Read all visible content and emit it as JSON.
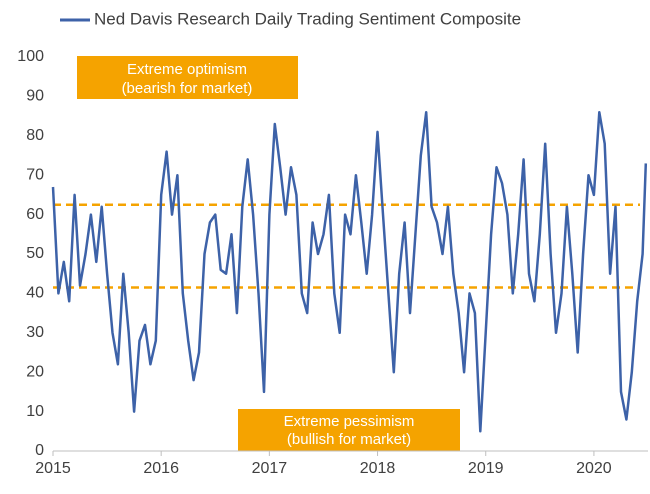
{
  "chart_data": {
    "type": "line",
    "x": [
      2015.0,
      2015.05,
      2015.1,
      2015.15,
      2015.2,
      2015.25,
      2015.3,
      2015.35,
      2015.4,
      2015.45,
      2015.5,
      2015.55,
      2015.6,
      2015.65,
      2015.7,
      2015.75,
      2015.8,
      2015.85,
      2015.9,
      2015.95,
      2016.0,
      2016.05,
      2016.1,
      2016.15,
      2016.2,
      2016.25,
      2016.3,
      2016.35,
      2016.4,
      2016.45,
      2016.5,
      2016.55,
      2016.6,
      2016.65,
      2016.7,
      2016.75,
      2016.8,
      2016.85,
      2016.9,
      2016.95,
      2017.0,
      2017.05,
      2017.1,
      2017.15,
      2017.2,
      2017.25,
      2017.3,
      2017.35,
      2017.4,
      2017.45,
      2017.5,
      2017.55,
      2017.6,
      2017.65,
      2017.7,
      2017.75,
      2017.8,
      2017.85,
      2017.9,
      2017.95,
      2018.0,
      2018.05,
      2018.1,
      2018.15,
      2018.2,
      2018.25,
      2018.3,
      2018.35,
      2018.4,
      2018.45,
      2018.5,
      2018.55,
      2018.6,
      2018.65,
      2018.7,
      2018.75,
      2018.8,
      2018.85,
      2018.9,
      2018.95,
      2019.0,
      2019.05,
      2019.1,
      2019.15,
      2019.2,
      2019.25,
      2019.3,
      2019.35,
      2019.4,
      2019.45,
      2019.5,
      2019.55,
      2019.6,
      2019.65,
      2019.7,
      2019.75,
      2019.8,
      2019.85,
      2019.9,
      2019.95,
      2020.0,
      2020.05,
      2020.1,
      2020.15,
      2020.2,
      2020.25,
      2020.3,
      2020.35,
      2020.4,
      2020.45,
      2020.48
    ],
    "series": [
      {
        "name": "Ned Davis Research Daily Trading Sentiment Composite",
        "color": "#3d62a8",
        "values": [
          67,
          40,
          48,
          38,
          65,
          42,
          50,
          60,
          48,
          62,
          45,
          30,
          22,
          45,
          30,
          10,
          28,
          32,
          22,
          28,
          65,
          76,
          60,
          70,
          40,
          28,
          18,
          25,
          50,
          58,
          60,
          46,
          45,
          55,
          35,
          62,
          74,
          60,
          40,
          15,
          60,
          83,
          72,
          60,
          72,
          65,
          40,
          35,
          58,
          50,
          55,
          65,
          40,
          30,
          60,
          55,
          70,
          58,
          45,
          60,
          81,
          60,
          40,
          20,
          45,
          58,
          35,
          55,
          75,
          86,
          62,
          58,
          50,
          62,
          45,
          35,
          20,
          40,
          35,
          5,
          30,
          55,
          72,
          68,
          60,
          40,
          55,
          74,
          45,
          38,
          55,
          78,
          50,
          30,
          40,
          62,
          45,
          25,
          50,
          70,
          65,
          86,
          78,
          45,
          62,
          15,
          8,
          20,
          38,
          50,
          73
        ]
      }
    ],
    "xlim": [
      2015,
      2020.5
    ],
    "xticks": [
      2015,
      2016,
      2017,
      2018,
      2019,
      2020
    ],
    "ylim": [
      0,
      100
    ],
    "yticks": [
      0,
      10,
      20,
      30,
      40,
      50,
      60,
      70,
      80,
      90,
      100
    ],
    "hlines": [
      62.5,
      41.5
    ],
    "hline_color": "#f5a300",
    "annotations": [
      "Extreme optimism",
      "(bearish for market)",
      "Extreme pessimism",
      "(bullish for market)"
    ],
    "annotation_color": "#f5a300"
  }
}
